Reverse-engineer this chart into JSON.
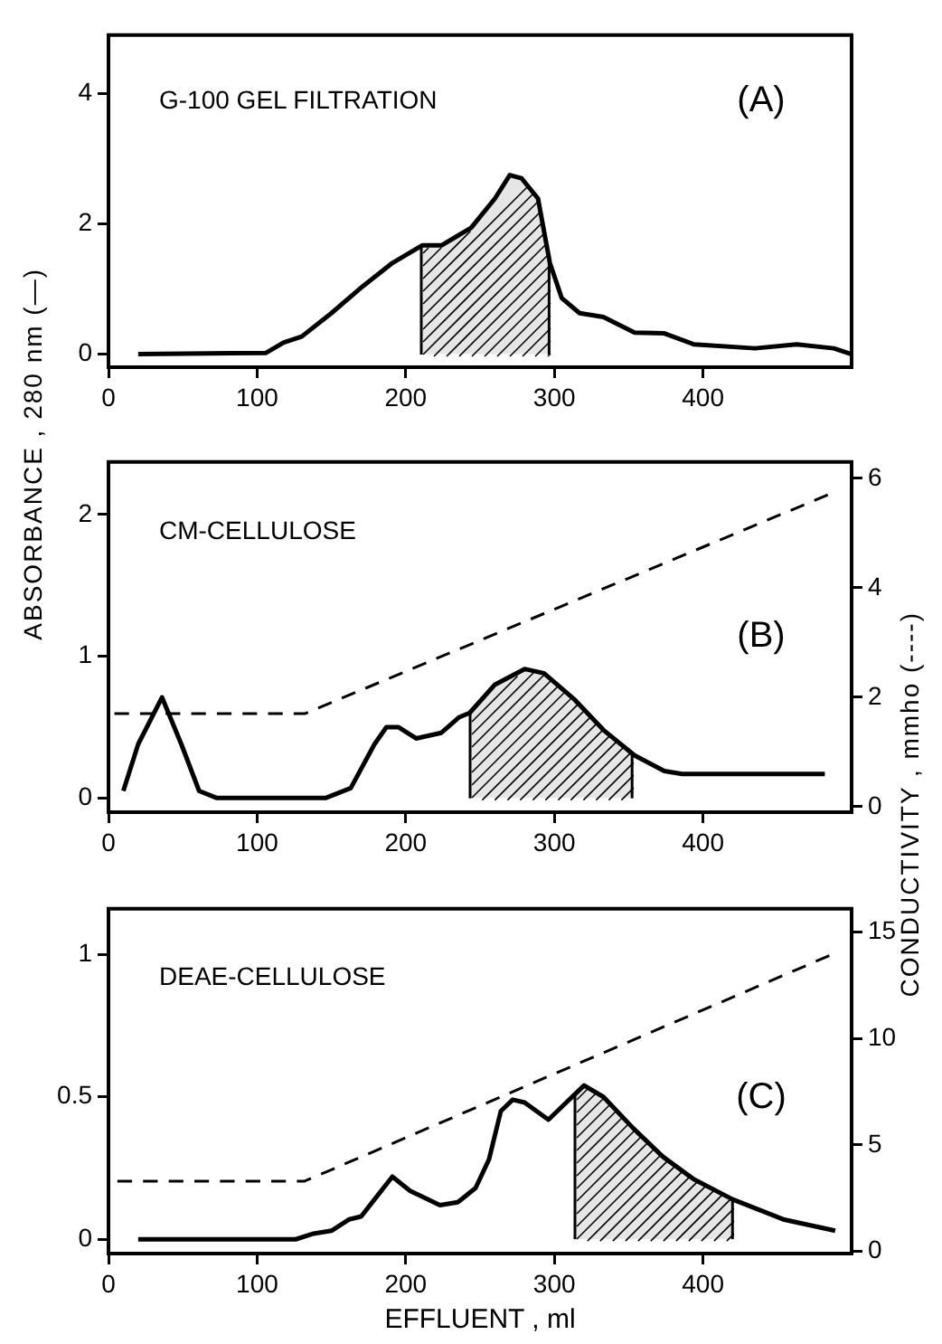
{
  "chart_data": [
    {
      "type": "line",
      "annotations": [
        "G-100 GEL FILTRATION",
        "(A)"
      ],
      "marker": "none",
      "xlim": [
        0,
        500
      ],
      "xticks": [
        0,
        100,
        200,
        300,
        400
      ],
      "ylim": [
        -0.2,
        4.9
      ],
      "yticks": [
        0,
        2,
        4
      ],
      "series": [
        {
          "color": "#000000",
          "x": [
            20,
            106,
            118,
            130,
            150,
            171,
            191,
            211,
            224,
            244,
            260,
            270,
            278,
            289,
            297,
            305,
            317,
            333,
            354,
            374,
            394,
            435,
            463,
            488,
            500
          ],
          "values": [
            0,
            0.02,
            0.18,
            0.27,
            0.63,
            1.04,
            1.4,
            1.67,
            1.67,
            1.94,
            2.39,
            2.75,
            2.7,
            2.39,
            1.4,
            0.86,
            0.63,
            0.57,
            0.33,
            0.32,
            0.15,
            0.09,
            0.15,
            0.09,
            0
          ]
        },
        {
          "type": "area",
          "color": "#e6e6e6",
          "x": [
            211,
            224,
            244,
            260,
            270,
            278,
            289,
            297
          ],
          "values": [
            1.67,
            1.67,
            1.94,
            2.39,
            2.75,
            2.7,
            2.39,
            1.4
          ]
        }
      ]
    },
    {
      "type": "line",
      "annotations": [
        "CM-CELLULOSE",
        "(B)"
      ],
      "ylabel": "ABSORBANCE , 280 nm (—)",
      "y2label": "CONDUCTIVITY , mmho (----)",
      "marker": "none",
      "xlim": [
        0,
        500
      ],
      "xticks": [
        0,
        100,
        200,
        300,
        400
      ],
      "ylim": [
        -0.1,
        2.37
      ],
      "yticks": [
        0,
        1,
        2
      ],
      "y2lim": [
        -0.1,
        6.3
      ],
      "y2ticks": [
        0,
        2,
        4,
        6
      ],
      "series": [
        {
          "color": "#000000",
          "x": [
            10,
            20,
            36,
            49,
            61,
            73,
            146,
            163,
            179,
            187,
            195,
            207,
            224,
            236,
            243,
            260,
            280,
            293,
            313,
            333,
            354,
            374,
            386,
            482
          ],
          "values": [
            0.05,
            0.38,
            0.71,
            0.38,
            0.05,
            0,
            0,
            0.07,
            0.38,
            0.5,
            0.5,
            0.42,
            0.46,
            0.57,
            0.6,
            0.8,
            0.91,
            0.88,
            0.7,
            0.48,
            0.3,
            0.19,
            0.17,
            0.17
          ]
        },
        {
          "color": "#000000",
          "axis": "y2",
          "line_style": "dashed",
          "x": [
            4,
            132,
            484
          ],
          "values": [
            1.7,
            1.7,
            5.7
          ]
        },
        {
          "type": "area",
          "color": "#e6e6e6",
          "x": [
            243,
            260,
            280,
            293,
            313,
            333,
            352
          ],
          "values": [
            0.6,
            0.8,
            0.91,
            0.88,
            0.7,
            0.48,
            0.32
          ]
        }
      ]
    },
    {
      "type": "line",
      "annotations": [
        "DEAE-CELLULOSE",
        "(C)"
      ],
      "xlabel": "EFFLUENT , ml",
      "marker": "none",
      "xlim": [
        0,
        500
      ],
      "xticks": [
        0,
        100,
        200,
        300,
        400
      ],
      "ylim": [
        -0.05,
        1.16
      ],
      "yticks": [
        0,
        0.5,
        1
      ],
      "y2lim": [
        -0.1,
        16.1
      ],
      "y2ticks": [
        0,
        5,
        10,
        15
      ],
      "series": [
        {
          "color": "#000000",
          "x": [
            20,
            126,
            138,
            150,
            162,
            170,
            179,
            191,
            203,
            211,
            223,
            235,
            247,
            256,
            264,
            272,
            280,
            296,
            308,
            314,
            320,
            333,
            353,
            373,
            394,
            420,
            454,
            489
          ],
          "values": [
            0,
            0,
            0.02,
            0.03,
            0.07,
            0.08,
            0.14,
            0.22,
            0.17,
            0.15,
            0.12,
            0.13,
            0.18,
            0.28,
            0.45,
            0.49,
            0.48,
            0.42,
            0.48,
            0.51,
            0.54,
            0.5,
            0.39,
            0.29,
            0.21,
            0.14,
            0.07,
            0.03
          ]
        },
        {
          "color": "#000000",
          "axis": "y2",
          "line_style": "dashed",
          "x": [
            6,
            132,
            485
          ],
          "values": [
            3.3,
            3.3,
            13.9
          ]
        },
        {
          "type": "area",
          "color": "#e6e6e6",
          "x": [
            314,
            320,
            333,
            353,
            373,
            394,
            420
          ],
          "values": [
            0.51,
            0.54,
            0.5,
            0.39,
            0.29,
            0.21,
            0.14
          ]
        }
      ]
    }
  ]
}
